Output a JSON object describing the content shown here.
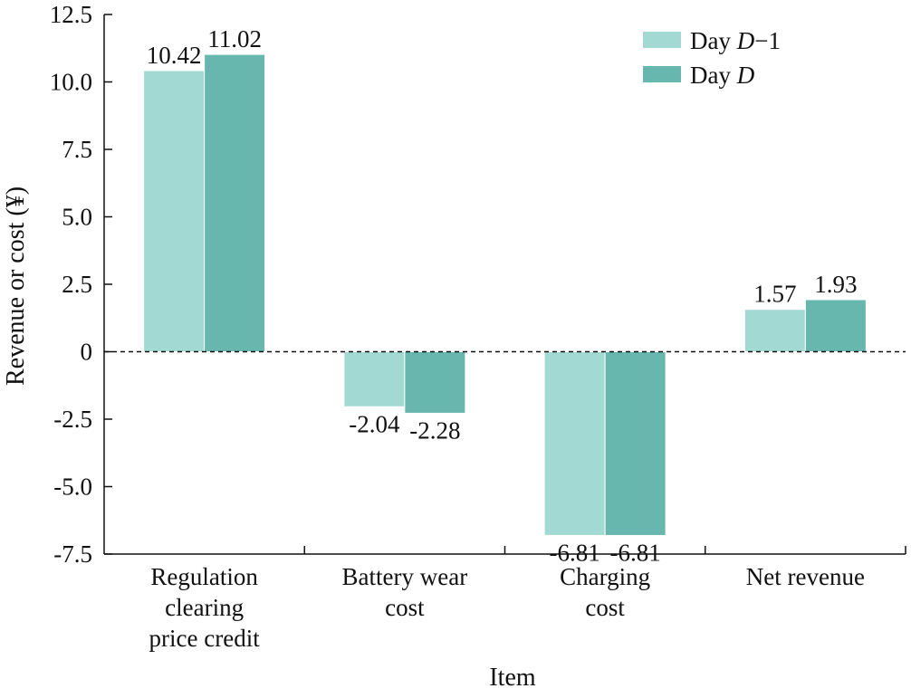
{
  "chart_data": {
    "type": "bar",
    "title": "",
    "xlabel": "Item",
    "ylabel": "Revenue or cost (¥)",
    "ylim": [
      -7.5,
      12.5
    ],
    "yticks": [
      12.5,
      10.0,
      7.5,
      5.0,
      2.5,
      0,
      -2.5,
      -5.0,
      -7.5
    ],
    "ytick_labels": [
      "12.5",
      "10.0",
      "7.5",
      "5.0",
      "2.5",
      "0",
      "-2.5",
      "-5.0",
      "-7.5"
    ],
    "categories": [
      [
        "Regulation",
        "clearing",
        "price credit"
      ],
      [
        "Battery wear",
        "cost"
      ],
      [
        "Charging",
        "cost"
      ],
      [
        "Net revenue"
      ]
    ],
    "series": [
      {
        "name": "Day D−1",
        "legend": {
          "prefix": "Day ",
          "italic": "D",
          "suffix": "−1"
        },
        "color": "#a3d9d3",
        "values": [
          10.42,
          -2.04,
          -6.81,
          1.57
        ],
        "labels": [
          "10.42",
          "-2.04",
          "-6.81",
          "1.57"
        ]
      },
      {
        "name": "Day D",
        "legend": {
          "prefix": "Day ",
          "italic": "D",
          "suffix": ""
        },
        "color": "#67b7ae",
        "values": [
          11.02,
          -2.28,
          -6.81,
          1.93
        ],
        "labels": [
          "11.02",
          "-2.28",
          "-6.81",
          "1.93"
        ]
      }
    ],
    "zero_line": "dashed",
    "grid": false,
    "legend_position": "top-right"
  }
}
